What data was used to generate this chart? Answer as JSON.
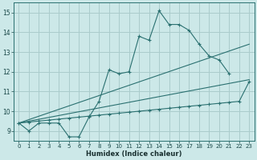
{
  "bg_color": "#cce8e8",
  "grid_color": "#aacccc",
  "line_color": "#2a7070",
  "xlabel": "Humidex (Indice chaleur)",
  "xlim": [
    -0.5,
    23.5
  ],
  "ylim": [
    8.5,
    15.5
  ],
  "yticks": [
    9,
    10,
    11,
    12,
    13,
    14,
    15
  ],
  "xticks": [
    0,
    1,
    2,
    3,
    4,
    5,
    6,
    7,
    8,
    9,
    10,
    11,
    12,
    13,
    14,
    15,
    16,
    17,
    18,
    19,
    20,
    21,
    22,
    23
  ],
  "series": [
    {
      "x": [
        0,
        1,
        2,
        3,
        4,
        5,
        6,
        7,
        8,
        9,
        10,
        11,
        12,
        13,
        14,
        15,
        16,
        17,
        18,
        19,
        20,
        21
      ],
      "y": [
        9.4,
        9.0,
        9.4,
        9.4,
        9.4,
        8.7,
        8.7,
        9.7,
        10.5,
        12.1,
        11.9,
        12.0,
        13.8,
        13.6,
        15.1,
        14.4,
        14.4,
        14.1,
        13.4,
        12.8,
        12.6,
        11.9
      ],
      "marker": true
    },
    {
      "x": [
        0,
        1,
        2,
        3,
        4,
        5,
        6,
        7,
        8,
        9,
        10,
        11,
        12,
        13,
        14,
        15,
        16,
        17,
        18,
        19,
        20,
        21,
        22,
        23
      ],
      "y": [
        9.4,
        9.45,
        9.5,
        9.55,
        9.6,
        9.65,
        9.7,
        9.75,
        9.8,
        9.85,
        9.9,
        9.95,
        10.0,
        10.05,
        10.1,
        10.15,
        10.2,
        10.25,
        10.3,
        10.35,
        10.4,
        10.45,
        10.5,
        11.5
      ],
      "marker": true
    },
    {
      "x": [
        0,
        1,
        2,
        3,
        4,
        5,
        6,
        7,
        8,
        9,
        10,
        11,
        12,
        13,
        14,
        15,
        16,
        17,
        18,
        19,
        20,
        21,
        22,
        23
      ],
      "y": [
        9.4,
        9.46,
        9.52,
        9.58,
        9.64,
        9.7,
        9.76,
        9.82,
        9.88,
        9.94,
        10.0,
        10.06,
        10.12,
        10.18,
        10.24,
        10.3,
        10.36,
        10.42,
        10.48,
        10.54,
        10.6,
        10.7,
        10.9,
        11.6
      ],
      "marker": false
    },
    {
      "x": [
        0,
        1,
        2,
        3,
        4,
        5,
        6,
        7,
        8,
        9,
        10,
        11,
        12,
        13,
        14,
        15,
        16,
        17,
        18,
        19,
        20,
        21,
        22,
        23
      ],
      "y": [
        9.4,
        9.58,
        9.76,
        9.94,
        10.12,
        10.3,
        10.48,
        10.66,
        10.84,
        11.02,
        11.2,
        11.38,
        11.56,
        11.74,
        11.92,
        12.1,
        12.28,
        12.46,
        12.64,
        12.82,
        13.0,
        13.18,
        13.27,
        13.4
      ],
      "marker": false
    }
  ]
}
